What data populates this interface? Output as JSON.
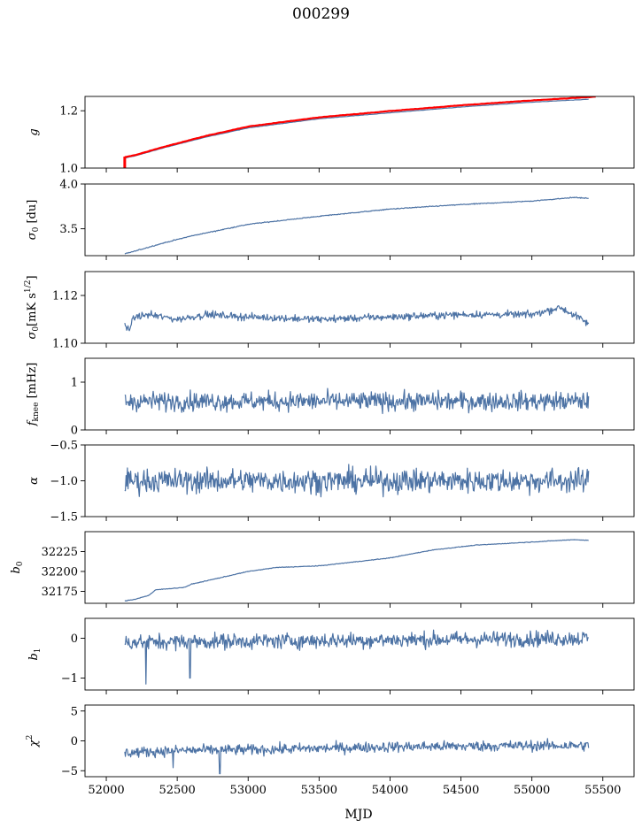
{
  "figure": {
    "title": "000299",
    "xlabel": "MJD"
  },
  "chart_data": {
    "type": "line",
    "shared_x": {
      "range": [
        51850,
        55720
      ],
      "ticks": [
        52000,
        52500,
        53000,
        53500,
        54000,
        54500,
        55000,
        55500
      ],
      "tick_labels": [
        "52000",
        "52500",
        "53000",
        "53500",
        "54000",
        "54500",
        "55000",
        "55500"
      ],
      "label": "MJD"
    },
    "line_color": "#4c72a4",
    "accent_color": "#ff0000",
    "panels": [
      {
        "id": "g",
        "ylabel": "g",
        "ylim": [
          1.0,
          1.25
        ],
        "yticks": [
          1.0,
          1.2
        ],
        "ytick_labels": [
          "1.0",
          "1.2"
        ],
        "series": [
          {
            "x": [
              52130,
              52200,
              52400,
              52700,
              53000,
              53500,
              54000,
              54500,
              55000,
              55400
            ],
            "y": [
              1.035,
              1.042,
              1.07,
              1.108,
              1.14,
              1.172,
              1.193,
              1.213,
              1.23,
              1.24
            ],
            "color": "#4c72a4"
          },
          {
            "x": [
              52130,
              52200,
              52400,
              52700,
              53000,
              53500,
              54000,
              54500,
              55000,
              55450
            ],
            "y": [
              1.038,
              1.045,
              1.073,
              1.112,
              1.145,
              1.177,
              1.199,
              1.219,
              1.236,
              1.249
            ],
            "color": "#ff0000"
          }
        ],
        "annotation": {
          "type": "red-spike",
          "x": 52130,
          "y_from": 1.0,
          "y_to": 1.04
        }
      },
      {
        "id": "sigma0-du",
        "ylabel": "σ₀ [du]",
        "ylim": [
          3.2,
          4.0
        ],
        "yticks": [
          3.5,
          4.0
        ],
        "ytick_labels": [
          "3.5",
          "4.0"
        ],
        "series": [
          {
            "x": [
              52130,
              52200,
              52400,
              52600,
              53000,
              53500,
              54000,
              54500,
              55000,
              55300,
              55400
            ],
            "y": [
              3.22,
              3.25,
              3.34,
              3.42,
              3.55,
              3.64,
              3.72,
              3.77,
              3.81,
              3.85,
              3.84
            ],
            "noise": 0.005,
            "color": "#4c72a4"
          }
        ]
      },
      {
        "id": "sigma0-mk",
        "ylabel": "σ₀[mK s^1/2]",
        "ylim": [
          1.1,
          1.13
        ],
        "yticks": [
          1.1,
          1.12
        ],
        "ytick_labels": [
          "1.10",
          "1.12"
        ],
        "series": [
          {
            "x": [
              52130,
              52160,
              52200,
              52300,
              52500,
              52700,
              53000,
              53500,
              54000,
              54500,
              55000,
              55200,
              55350,
              55400
            ],
            "y": [
              1.107,
              1.106,
              1.111,
              1.112,
              1.11,
              1.112,
              1.111,
              1.11,
              1.111,
              1.112,
              1.112,
              1.115,
              1.11,
              1.108
            ],
            "noise": 0.0015,
            "color": "#4c72a4"
          }
        ]
      },
      {
        "id": "fknee",
        "ylabel": "f_knee [mHz]",
        "ylim": [
          0,
          1.5
        ],
        "yticks": [
          0,
          1
        ],
        "ytick_labels": [
          "0",
          "1"
        ],
        "series": [
          {
            "x": [
              52130,
              55400
            ],
            "y": [
              0.6,
              0.6
            ],
            "noise": 0.2,
            "color": "#4c72a4"
          }
        ]
      },
      {
        "id": "alpha",
        "ylabel": "α",
        "ylim": [
          -1.5,
          -0.5
        ],
        "yticks": [
          -1.5,
          -1.0,
          -0.5
        ],
        "ytick_labels": [
          "−1.5",
          "−1.0",
          "−0.5"
        ],
        "series": [
          {
            "x": [
              52130,
              55400
            ],
            "y": [
              -1.0,
              -1.0
            ],
            "noise": 0.17,
            "color": "#4c72a4"
          }
        ]
      },
      {
        "id": "b0",
        "ylabel": "b₀",
        "ylim": [
          32160,
          32250
        ],
        "yticks": [
          32175,
          32200,
          32225
        ],
        "ytick_labels": [
          "32175",
          "32200",
          "32225"
        ],
        "series": [
          {
            "x": [
              52130,
              52200,
              52300,
              52350,
              52550,
              52600,
              52800,
              53000,
              53200,
              53500,
              53800,
              54000,
              54300,
              54600,
              55000,
              55300,
              55400
            ],
            "y": [
              32163,
              32165,
              32170,
              32177,
              32180,
              32184,
              32192,
              32200,
              32205,
              32207,
              32213,
              32217,
              32227,
              32233,
              32237,
              32240,
              32239
            ],
            "noise": 0.4,
            "color": "#4c72a4"
          }
        ]
      },
      {
        "id": "b1",
        "ylabel": "b₁",
        "ylim": [
          -1.3,
          0.5
        ],
        "yticks": [
          -1,
          0
        ],
        "ytick_labels": [
          "−1",
          "0"
        ],
        "series": [
          {
            "x": [
              52130,
              55400
            ],
            "y": [
              -0.1,
              0.0
            ],
            "noise": 0.2,
            "color": "#4c72a4",
            "dips": [
              {
                "x": 52280,
                "y": -1.15
              },
              {
                "x": 52590,
                "y": -1.0
              }
            ]
          }
        ]
      },
      {
        "id": "chi2",
        "ylabel": "χ²",
        "ylim": [
          -6,
          6
        ],
        "yticks": [
          -5,
          0,
          5
        ],
        "ytick_labels": [
          "−5",
          "0",
          "5"
        ],
        "series": [
          {
            "x": [
              52130,
              52500,
              53000,
              54000,
              55000,
              55400
            ],
            "y": [
              -2.0,
              -1.6,
              -1.5,
              -1.0,
              -0.8,
              -0.8
            ],
            "noise": 0.9,
            "color": "#4c72a4",
            "dips": [
              {
                "x": 52800,
                "y": -5.5
              },
              {
                "x": 52470,
                "y": -4.5
              }
            ]
          }
        ]
      }
    ]
  }
}
